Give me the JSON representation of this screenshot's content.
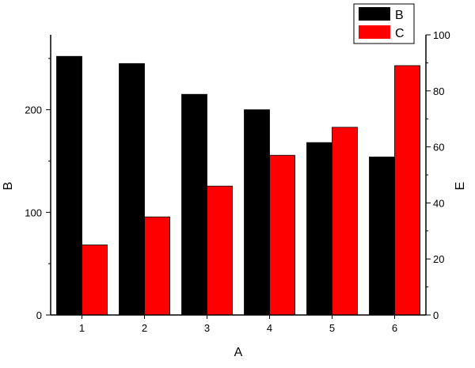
{
  "chart_data": {
    "type": "bar",
    "categories": [
      "1",
      "2",
      "3",
      "4",
      "5",
      "6"
    ],
    "series": [
      {
        "name": "B",
        "axis": "left",
        "color": "#000000",
        "values": [
          252,
          245,
          215,
          200,
          168,
          154
        ]
      },
      {
        "name": "C",
        "axis": "right",
        "color": "#ff0000",
        "values": [
          25,
          35,
          46,
          57,
          67,
          89
        ]
      }
    ],
    "xlabel": "A",
    "ylabel_left": "B",
    "ylabel_right": "E",
    "ylim_left": [
      0,
      273
    ],
    "ylim_right": [
      0,
      100
    ],
    "yticks_left": [
      0,
      100,
      200
    ],
    "yticks_right": [
      0,
      20,
      40,
      60,
      80,
      100
    ],
    "legend": {
      "position": "top-right",
      "entries": [
        "B",
        "C"
      ]
    },
    "grid": false
  }
}
